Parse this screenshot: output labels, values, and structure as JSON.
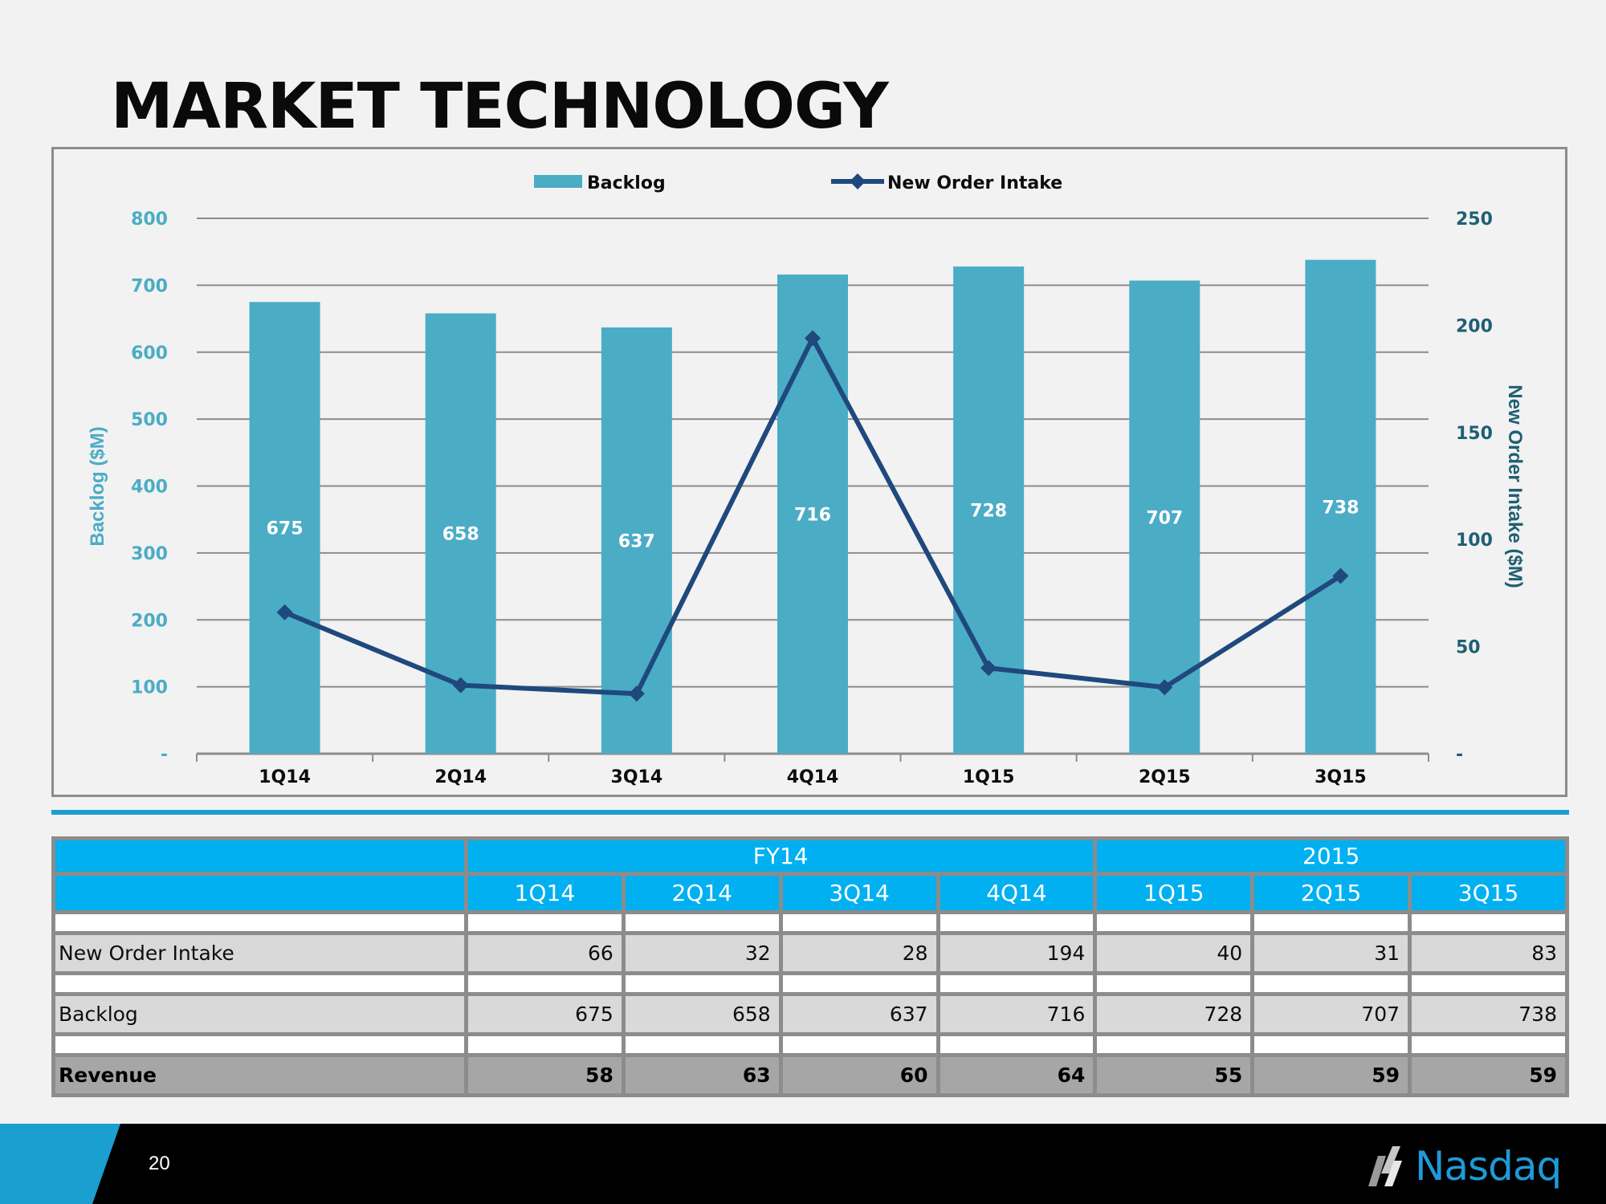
{
  "title": "MARKET TECHNOLOGY",
  "colors": {
    "bar": "#4bacc6",
    "line": "#1f497d",
    "header": "#00b0f0",
    "accent": "#1a9fd0"
  },
  "chart_data": {
    "type": "bar",
    "categories": [
      "1Q14",
      "2Q14",
      "3Q14",
      "4Q14",
      "1Q15",
      "2Q15",
      "3Q15"
    ],
    "series": [
      {
        "name": "Backlog",
        "type": "bar",
        "axis": "left",
        "values": [
          675,
          658,
          637,
          716,
          728,
          707,
          738
        ],
        "data_labels": [
          "675",
          "658",
          "637",
          "716",
          "728",
          "707",
          "738"
        ]
      },
      {
        "name": "New Order Intake",
        "type": "line",
        "axis": "right",
        "values": [
          66,
          32,
          28,
          194,
          40,
          31,
          83
        ]
      }
    ],
    "ylabel": "Backlog ($M)",
    "y2label": "New Order Intake ($M)",
    "ylim": [
      0,
      800
    ],
    "y2lim": [
      0,
      250
    ],
    "yticks": [
      "-",
      "100",
      "200",
      "300",
      "400",
      "500",
      "600",
      "700",
      "800"
    ],
    "y2ticks": [
      "-",
      "50",
      "100",
      "150",
      "200",
      "250"
    ],
    "legend_position": "top-center",
    "grid": true
  },
  "table": {
    "group_headers": [
      "FY14",
      "2015"
    ],
    "columns": [
      "1Q14",
      "2Q14",
      "3Q14",
      "4Q14",
      "1Q15",
      "2Q15",
      "3Q15"
    ],
    "rows": [
      {
        "label": "New Order Intake",
        "values": [
          "66",
          "32",
          "28",
          "194",
          "40",
          "31",
          "83"
        ]
      },
      {
        "label": "Backlog",
        "values": [
          "675",
          "658",
          "637",
          "716",
          "728",
          "707",
          "738"
        ]
      },
      {
        "label": "Revenue",
        "values": [
          "58",
          "63",
          "60",
          "64",
          "55",
          "59",
          "59"
        ]
      }
    ]
  },
  "footer": {
    "page_number": "20",
    "logo_text": "Nasdaq"
  }
}
